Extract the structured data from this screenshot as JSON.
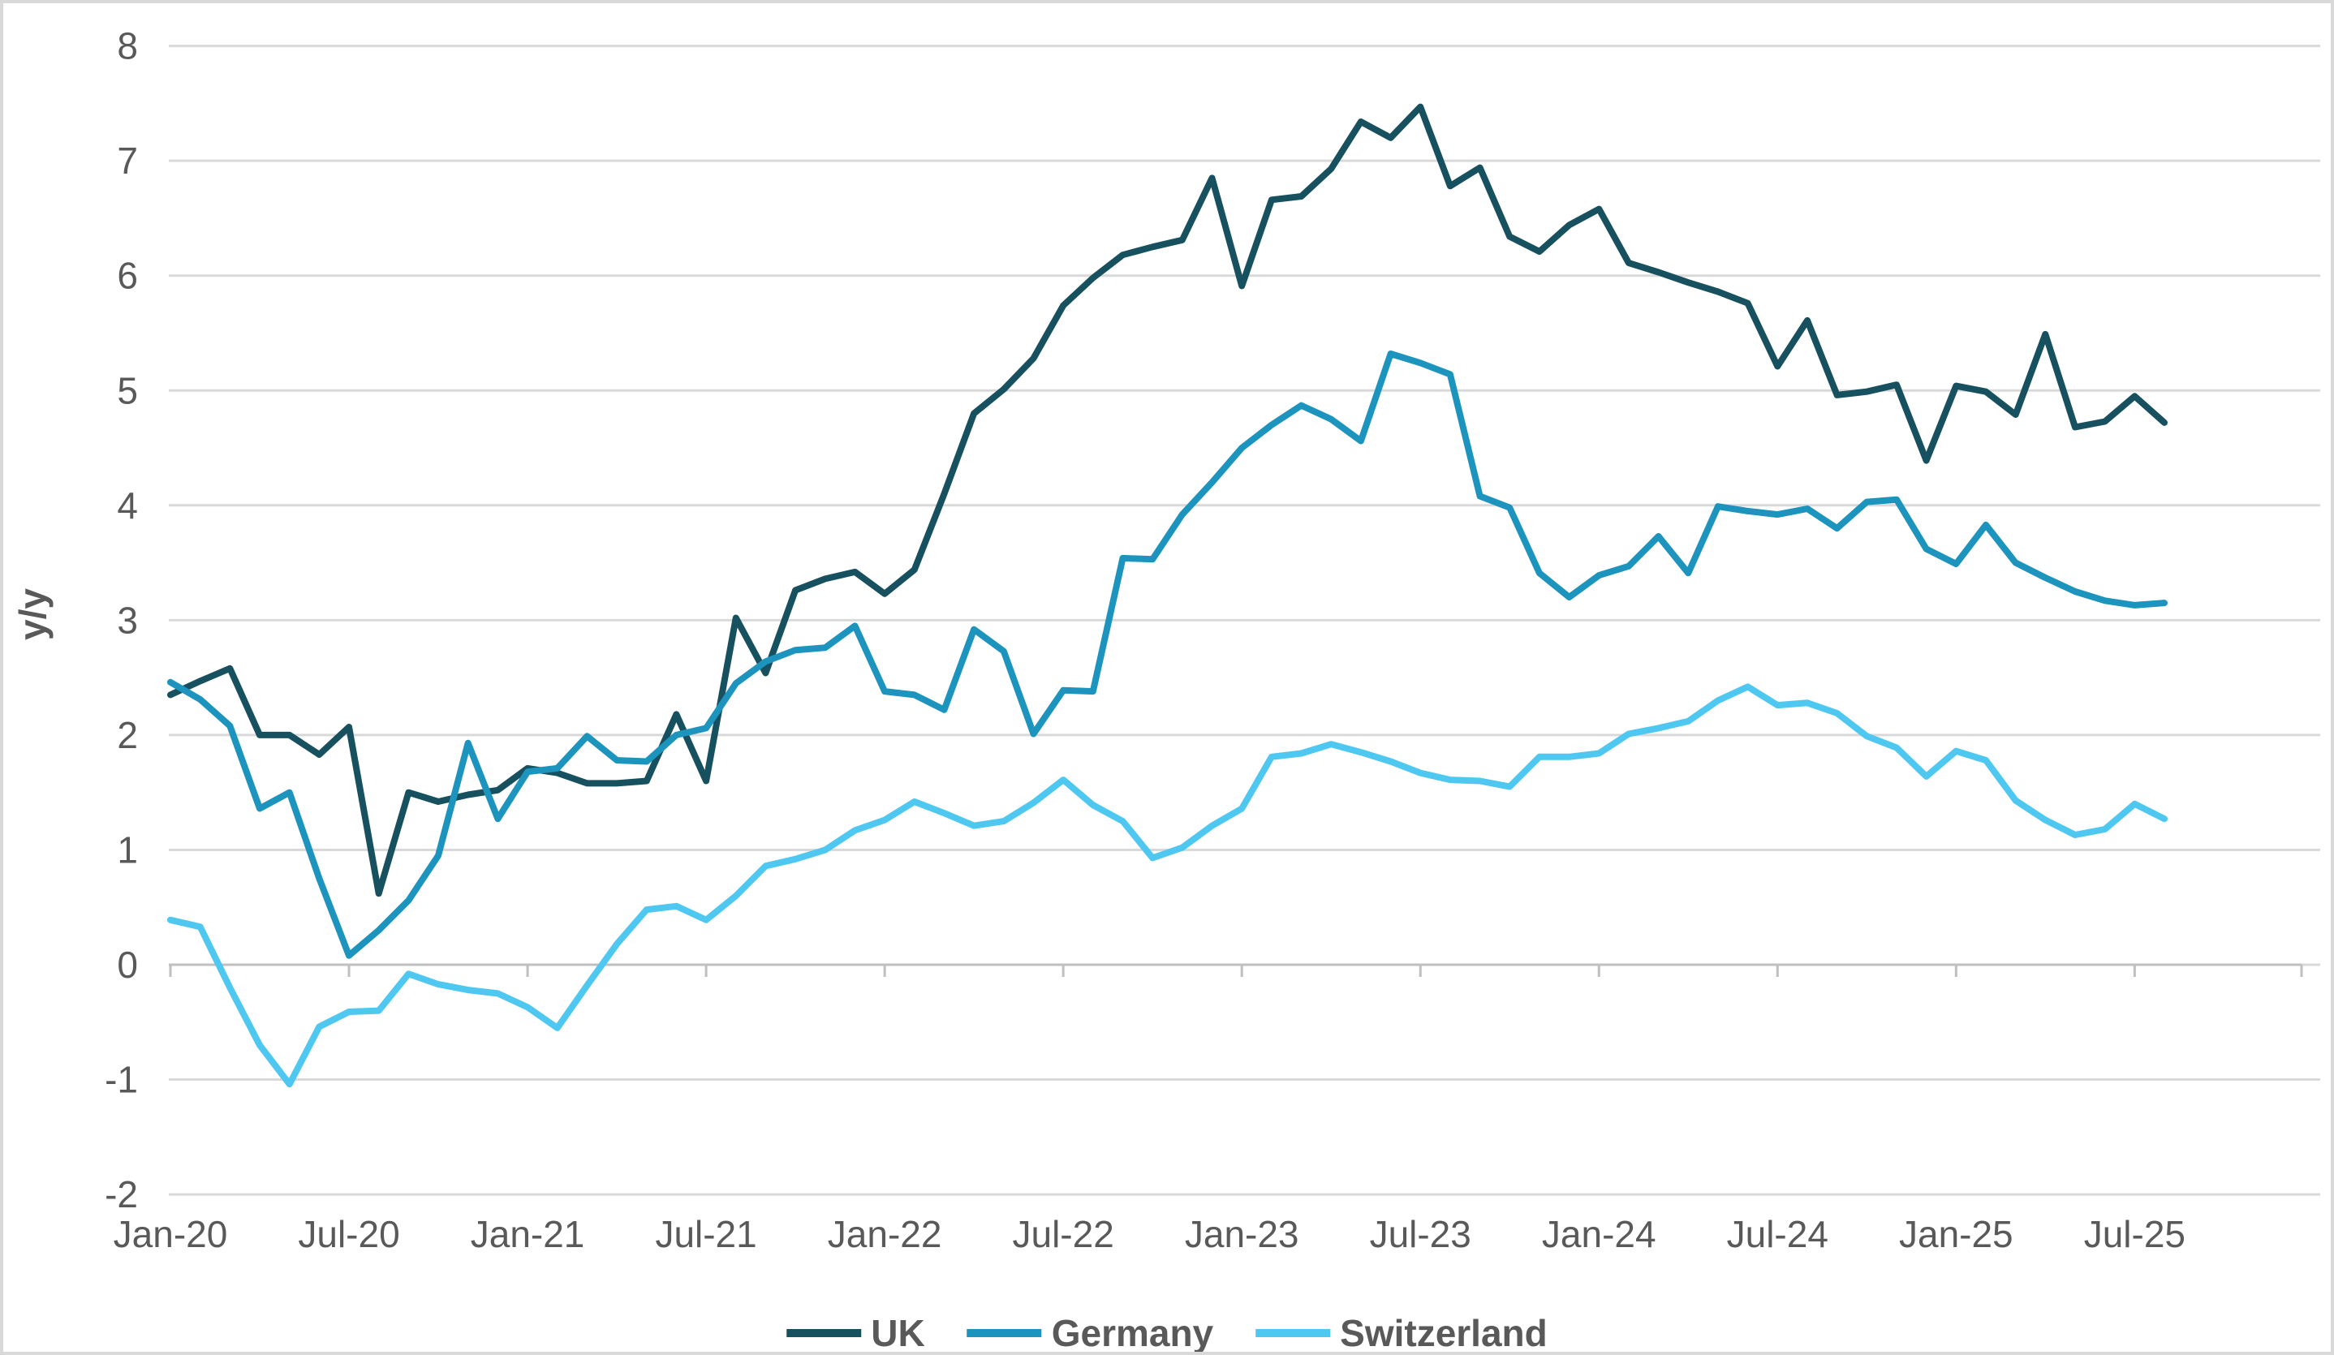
{
  "chart_data": {
    "type": "line",
    "ylabel": "y/y",
    "ylim": [
      -2,
      8
    ],
    "grid": true,
    "legend_position": "bottom",
    "y_ticks": [
      -2,
      -1,
      0,
      1,
      2,
      3,
      4,
      5,
      6,
      7,
      8
    ],
    "x_tick_labels": [
      "Jan-20",
      "Jul-20",
      "Jan-21",
      "Jul-21",
      "Jan-22",
      "Jul-22",
      "Jan-23",
      "Jul-23",
      "Jan-24",
      "Jul-24",
      "Jan-25",
      "Jul-25"
    ],
    "categories": [
      "Jan-20",
      "Feb-20",
      "Mar-20",
      "Apr-20",
      "May-20",
      "Jun-20",
      "Jul-20",
      "Aug-20",
      "Sep-20",
      "Oct-20",
      "Nov-20",
      "Dec-20",
      "Jan-21",
      "Feb-21",
      "Mar-21",
      "Apr-21",
      "May-21",
      "Jun-21",
      "Jul-21",
      "Aug-21",
      "Sep-21",
      "Oct-21",
      "Nov-21",
      "Dec-21",
      "Jan-22",
      "Feb-22",
      "Mar-22",
      "Apr-22",
      "May-22",
      "Jun-22",
      "Jul-22",
      "Aug-22",
      "Sep-22",
      "Oct-22",
      "Nov-22",
      "Dec-22",
      "Jan-23",
      "Feb-23",
      "Mar-23",
      "Apr-23",
      "May-23",
      "Jun-23",
      "Jul-23",
      "Aug-23",
      "Sep-23",
      "Oct-23",
      "Nov-23",
      "Dec-23",
      "Jan-24",
      "Feb-24",
      "Mar-24",
      "Apr-24",
      "May-24",
      "Jun-24",
      "Jul-24",
      "Aug-24",
      "Sep-24",
      "Oct-24",
      "Nov-24",
      "Dec-24",
      "Jan-25",
      "Feb-25",
      "Mar-25",
      "Apr-25",
      "May-25",
      "Jun-25",
      "Jul-25",
      "Aug-25"
    ],
    "series": [
      {
        "name": "UK",
        "color": "#17505F",
        "values": [
          2.35,
          2.47,
          2.58,
          2.0,
          2.0,
          1.83,
          2.07,
          0.62,
          1.5,
          1.42,
          1.48,
          1.52,
          1.71,
          1.67,
          1.58,
          1.58,
          1.6,
          2.18,
          1.6,
          3.02,
          2.54,
          3.26,
          3.36,
          3.42,
          3.23,
          3.44,
          4.1,
          4.8,
          5.01,
          5.28,
          5.74,
          5.98,
          6.18,
          6.25,
          6.31,
          6.85,
          5.91,
          6.66,
          6.69,
          6.93,
          7.34,
          7.2,
          7.47,
          6.78,
          6.94,
          6.34,
          6.21,
          6.44,
          6.58,
          6.11,
          6.03,
          5.94,
          5.86,
          5.76,
          5.21,
          5.61,
          4.96,
          4.99,
          5.05,
          4.39,
          5.04,
          4.99,
          4.79,
          5.49,
          4.68,
          4.73,
          4.95,
          4.72
        ]
      },
      {
        "name": "Germany",
        "color": "#1C94BD",
        "values": [
          2.46,
          2.31,
          2.08,
          1.36,
          1.5,
          0.75,
          0.08,
          0.3,
          0.56,
          0.95,
          1.93,
          1.27,
          1.68,
          1.71,
          1.99,
          1.78,
          1.77,
          2.0,
          2.06,
          2.45,
          2.64,
          2.74,
          2.76,
          2.95,
          2.38,
          2.35,
          2.22,
          2.92,
          2.73,
          2.01,
          2.39,
          2.38,
          3.54,
          3.53,
          3.92,
          4.2,
          4.5,
          4.7,
          4.87,
          4.75,
          4.56,
          5.32,
          5.24,
          5.14,
          4.08,
          3.98,
          3.41,
          3.2,
          3.39,
          3.47,
          3.73,
          3.41,
          3.99,
          3.95,
          3.92,
          3.97,
          3.8,
          4.03,
          4.05,
          3.62,
          3.49,
          3.83,
          3.5,
          3.37,
          3.25,
          3.17,
          3.13,
          3.15
        ]
      },
      {
        "name": "Switzerland",
        "color": "#4EC7F1",
        "values": [
          0.39,
          0.33,
          -0.2,
          -0.7,
          -1.04,
          -0.54,
          -0.41,
          -0.4,
          -0.08,
          -0.17,
          -0.22,
          -0.25,
          -0.37,
          -0.55,
          -0.18,
          0.18,
          0.48,
          0.51,
          0.39,
          0.6,
          0.86,
          0.92,
          1.0,
          1.17,
          1.26,
          1.42,
          1.32,
          1.21,
          1.25,
          1.41,
          1.61,
          1.39,
          1.25,
          0.93,
          1.02,
          1.21,
          1.36,
          1.81,
          1.84,
          1.92,
          1.85,
          1.77,
          1.67,
          1.61,
          1.6,
          1.55,
          1.81,
          1.81,
          1.84,
          2.01,
          2.06,
          2.12,
          2.3,
          2.42,
          2.26,
          2.28,
          2.19,
          1.99,
          1.89,
          1.64,
          1.86,
          1.78,
          1.43,
          1.26,
          1.13,
          1.18,
          1.4,
          1.27
        ]
      }
    ],
    "style_colors": {
      "gridline": "#D9D9D9",
      "axis_line": "#BFBFBF",
      "tick_text": "#595959",
      "border": "#D9D9D9"
    }
  }
}
